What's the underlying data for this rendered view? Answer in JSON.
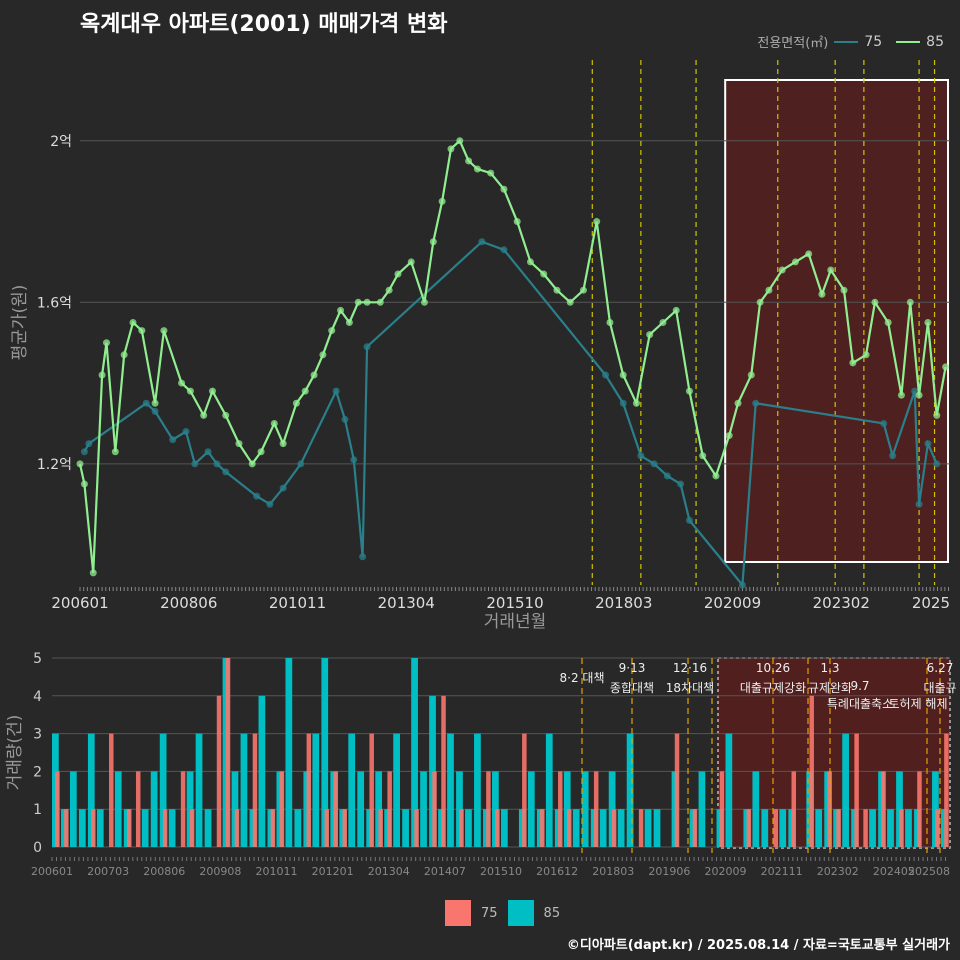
{
  "title": "옥계대우 아파트(2001) 매매가격 변화",
  "footer": "©디아파트(dapt.kr) / 2025.08.14 / 자료=국토교통부 실거래가",
  "legend_top": {
    "title": "전용면적(㎡)",
    "items": [
      {
        "label": "75",
        "color": "#2a7f8a"
      },
      {
        "label": "85",
        "color": "#90ee90"
      }
    ]
  },
  "legend_bottom": {
    "items": [
      {
        "label": "75",
        "color": "#f8766d"
      },
      {
        "label": "85",
        "color": "#00bfc4"
      }
    ]
  },
  "chart_data": [
    {
      "type": "line",
      "title": "옥계대우 아파트(2001) 매매가격 변화",
      "xlabel": "거래년월",
      "ylabel": "평균가(원)",
      "x_tick_labels": [
        "200601",
        "200806",
        "201011",
        "201304",
        "201510",
        "201803",
        "202009",
        "202302",
        "2025"
      ],
      "y_ticks": [
        {
          "value": 1.2,
          "label": "1.2억"
        },
        {
          "value": 1.6,
          "label": "1.6억"
        },
        {
          "value": 2.0,
          "label": "2억"
        }
      ],
      "xlim": [
        2006.0,
        2025.7
      ],
      "ylim": [
        0.9,
        2.2
      ],
      "policy_lines": [
        2017.6,
        2018.7,
        2019.95,
        2021.8,
        2023.1,
        2023.75,
        2025.0,
        2025.35
      ],
      "highlight_range": [
        2020.7,
        2025.7
      ],
      "series": [
        {
          "name": "75",
          "color": "#2a7f8a",
          "points": [
            [
              2006.1,
              1.23
            ],
            [
              2006.2,
              1.25
            ],
            [
              2007.5,
              1.35
            ],
            [
              2007.7,
              1.33
            ],
            [
              2008.1,
              1.26
            ],
            [
              2008.4,
              1.28
            ],
            [
              2008.6,
              1.2
            ],
            [
              2008.9,
              1.23
            ],
            [
              2009.1,
              1.2
            ],
            [
              2009.3,
              1.18
            ],
            [
              2010.0,
              1.12
            ],
            [
              2010.3,
              1.1
            ],
            [
              2010.6,
              1.14
            ],
            [
              2011.0,
              1.2
            ],
            [
              2011.8,
              1.38
            ],
            [
              2012.0,
              1.31
            ],
            [
              2012.2,
              1.21
            ],
            [
              2012.4,
              0.97
            ],
            [
              2012.5,
              1.49
            ],
            [
              2015.1,
              1.75
            ],
            [
              2015.6,
              1.73
            ],
            [
              2017.9,
              1.42
            ],
            [
              2018.3,
              1.35
            ],
            [
              2018.7,
              1.22
            ],
            [
              2019.0,
              1.2
            ],
            [
              2019.3,
              1.17
            ],
            [
              2019.6,
              1.15
            ],
            [
              2019.8,
              1.06
            ],
            [
              2021.0,
              0.9
            ],
            [
              2021.3,
              1.35
            ],
            [
              2024.2,
              1.3
            ],
            [
              2024.4,
              1.22
            ],
            [
              2024.9,
              1.38
            ],
            [
              2025.0,
              1.1
            ],
            [
              2025.2,
              1.25
            ],
            [
              2025.4,
              1.2
            ]
          ]
        },
        {
          "name": "85",
          "color": "#90ee90",
          "points": [
            [
              2006.0,
              1.2
            ],
            [
              2006.1,
              1.15
            ],
            [
              2006.3,
              0.93
            ],
            [
              2006.5,
              1.42
            ],
            [
              2006.6,
              1.5
            ],
            [
              2006.8,
              1.23
            ],
            [
              2007.0,
              1.47
            ],
            [
              2007.2,
              1.55
            ],
            [
              2007.4,
              1.53
            ],
            [
              2007.7,
              1.35
            ],
            [
              2007.9,
              1.53
            ],
            [
              2008.3,
              1.4
            ],
            [
              2008.5,
              1.38
            ],
            [
              2008.8,
              1.32
            ],
            [
              2009.0,
              1.38
            ],
            [
              2009.3,
              1.32
            ],
            [
              2009.6,
              1.25
            ],
            [
              2009.9,
              1.2
            ],
            [
              2010.1,
              1.23
            ],
            [
              2010.4,
              1.3
            ],
            [
              2010.6,
              1.25
            ],
            [
              2010.9,
              1.35
            ],
            [
              2011.1,
              1.38
            ],
            [
              2011.3,
              1.42
            ],
            [
              2011.5,
              1.47
            ],
            [
              2011.7,
              1.53
            ],
            [
              2011.9,
              1.58
            ],
            [
              2012.1,
              1.55
            ],
            [
              2012.3,
              1.6
            ],
            [
              2012.5,
              1.6
            ],
            [
              2012.8,
              1.6
            ],
            [
              2013.0,
              1.63
            ],
            [
              2013.2,
              1.67
            ],
            [
              2013.5,
              1.7
            ],
            [
              2013.8,
              1.6
            ],
            [
              2014.0,
              1.75
            ],
            [
              2014.2,
              1.85
            ],
            [
              2014.4,
              1.98
            ],
            [
              2014.6,
              2.0
            ],
            [
              2014.8,
              1.95
            ],
            [
              2015.0,
              1.93
            ],
            [
              2015.3,
              1.92
            ],
            [
              2015.6,
              1.88
            ],
            [
              2015.9,
              1.8
            ],
            [
              2016.2,
              1.7
            ],
            [
              2016.5,
              1.67
            ],
            [
              2016.8,
              1.63
            ],
            [
              2017.1,
              1.6
            ],
            [
              2017.4,
              1.63
            ],
            [
              2017.7,
              1.8
            ],
            [
              2018.0,
              1.55
            ],
            [
              2018.3,
              1.42
            ],
            [
              2018.6,
              1.35
            ],
            [
              2018.9,
              1.52
            ],
            [
              2019.2,
              1.55
            ],
            [
              2019.5,
              1.58
            ],
            [
              2019.8,
              1.38
            ],
            [
              2020.1,
              1.22
            ],
            [
              2020.4,
              1.17
            ],
            [
              2020.7,
              1.27
            ],
            [
              2020.9,
              1.35
            ],
            [
              2021.2,
              1.42
            ],
            [
              2021.4,
              1.6
            ],
            [
              2021.6,
              1.63
            ],
            [
              2021.9,
              1.68
            ],
            [
              2022.2,
              1.7
            ],
            [
              2022.5,
              1.72
            ],
            [
              2022.8,
              1.62
            ],
            [
              2023.0,
              1.68
            ],
            [
              2023.3,
              1.63
            ],
            [
              2023.5,
              1.45
            ],
            [
              2023.8,
              1.47
            ],
            [
              2024.0,
              1.6
            ],
            [
              2024.3,
              1.55
            ],
            [
              2024.6,
              1.37
            ],
            [
              2024.8,
              1.6
            ],
            [
              2025.0,
              1.37
            ],
            [
              2025.2,
              1.55
            ],
            [
              2025.4,
              1.32
            ],
            [
              2025.6,
              1.44
            ]
          ]
        }
      ]
    },
    {
      "type": "bar",
      "xlabel": "",
      "ylabel": "거래량(건)",
      "x_tick_labels": [
        "200601",
        "200703",
        "200806",
        "200908",
        "201011",
        "201201",
        "201304",
        "201407",
        "201510",
        "201612",
        "201803",
        "201906",
        "202009",
        "202111",
        "202302",
        "202405",
        "202508"
      ],
      "y_ticks": [
        0,
        1,
        2,
        3,
        4,
        5
      ],
      "ylim": [
        0,
        5
      ],
      "annotations": [
        {
          "label": "8·2 대책",
          "line2": ""
        },
        {
          "label": "9·13",
          "line2": "종합대책"
        },
        {
          "label": "12·16",
          "line2": "18차대책"
        },
        {
          "label": "10.26",
          "line2": "대출규제강화"
        },
        {
          "label": "1.3",
          "line2": "규제완화"
        },
        {
          "label": "9.7",
          "line2": "특례대출축소"
        },
        {
          "label": "",
          "line2": "토허제 해제"
        },
        {
          "label": "6.27",
          "line2": "대출규"
        }
      ],
      "series": [
        {
          "name": "75",
          "color": "#f8766d",
          "values": [
            2,
            1,
            0,
            0,
            1,
            0,
            3,
            0,
            1,
            2,
            0,
            0,
            1,
            0,
            2,
            1,
            0,
            0,
            4,
            5,
            1,
            0,
            3,
            0,
            1,
            2,
            0,
            0,
            3,
            0,
            1,
            2,
            1,
            0,
            0,
            3,
            1,
            2,
            0,
            0,
            1,
            0,
            2,
            4,
            0,
            1,
            0,
            0,
            2,
            1,
            0,
            0,
            3,
            0,
            1,
            0,
            2,
            1,
            0,
            0,
            2,
            0,
            1,
            0,
            0,
            1,
            0,
            0,
            0,
            3,
            0,
            1,
            0,
            0,
            2,
            0,
            0,
            1,
            0,
            0,
            1,
            0,
            2,
            0,
            4,
            0,
            2,
            1,
            0,
            3,
            1,
            0,
            2,
            0,
            1,
            0,
            2,
            0,
            1,
            3
          ]
        },
        {
          "name": "85",
          "color": "#00bfc4",
          "values": [
            3,
            1,
            2,
            1,
            3,
            1,
            0,
            2,
            1,
            0,
            1,
            2,
            3,
            1,
            0,
            2,
            3,
            1,
            0,
            5,
            2,
            3,
            1,
            4,
            1,
            2,
            5,
            1,
            2,
            3,
            5,
            2,
            1,
            3,
            2,
            1,
            2,
            1,
            3,
            1,
            5,
            2,
            4,
            1,
            3,
            2,
            1,
            3,
            1,
            2,
            1,
            0,
            1,
            2,
            1,
            3,
            1,
            2,
            1,
            2,
            1,
            1,
            2,
            1,
            3,
            0,
            1,
            1,
            0,
            2,
            0,
            1,
            2,
            0,
            1,
            3,
            0,
            1,
            2,
            1,
            0,
            1,
            1,
            0,
            2,
            1,
            2,
            1,
            3,
            1,
            0,
            1,
            2,
            1,
            2,
            1,
            1,
            0,
            2,
            1
          ]
        }
      ]
    }
  ]
}
